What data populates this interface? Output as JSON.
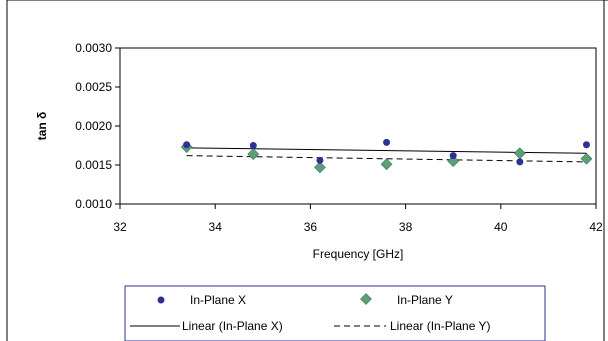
{
  "chart_data": {
    "type": "scatter",
    "title": "",
    "xlabel": "Frequency [GHz]",
    "ylabel": "tan δ",
    "xlim": [
      32,
      42
    ],
    "ylim": [
      0.001,
      0.003
    ],
    "xticks": [
      32,
      34,
      36,
      38,
      40,
      42
    ],
    "xtick_labels": [
      "32",
      "34",
      "36",
      "38",
      "40",
      "42"
    ],
    "yticks": [
      0.001,
      0.0015,
      0.002,
      0.0025,
      0.003
    ],
    "ytick_labels": [
      "0.0010",
      "0.0015",
      "0.0020",
      "0.0025",
      "0.0030"
    ],
    "grid": false,
    "legend_position": "bottom",
    "series": [
      {
        "name": "In-Plane X",
        "marker": "circle",
        "color": "#2e3192",
        "x": [
          33.4,
          34.8,
          36.2,
          37.6,
          39.0,
          40.4,
          41.8
        ],
        "y": [
          0.00176,
          0.00175,
          0.00156,
          0.00179,
          0.00162,
          0.00154,
          0.00176
        ]
      },
      {
        "name": "In-Plane Y",
        "marker": "diamond",
        "color": "#5b9f78",
        "x": [
          33.4,
          34.8,
          36.2,
          37.6,
          39.0,
          40.4,
          41.8
        ],
        "y": [
          0.00173,
          0.00164,
          0.00147,
          0.00151,
          0.00155,
          0.00165,
          0.00158
        ]
      }
    ],
    "trendlines": [
      {
        "name": "Linear (In-Plane X)",
        "style": "solid",
        "x": [
          33.4,
          41.8
        ],
        "y": [
          0.00172,
          0.00165
        ]
      },
      {
        "name": "Linear (In-Plane Y)",
        "style": "dashed",
        "x": [
          33.4,
          41.8
        ],
        "y": [
          0.00162,
          0.00154
        ]
      }
    ],
    "legend": {
      "marker_entries": [
        "In-Plane X",
        "In-Plane Y"
      ],
      "line_entries": [
        "Linear (In-Plane X)",
        "Linear (In-Plane Y)"
      ]
    },
    "colors": {
      "border": "#000000",
      "legend_border": "#2e3192"
    }
  }
}
